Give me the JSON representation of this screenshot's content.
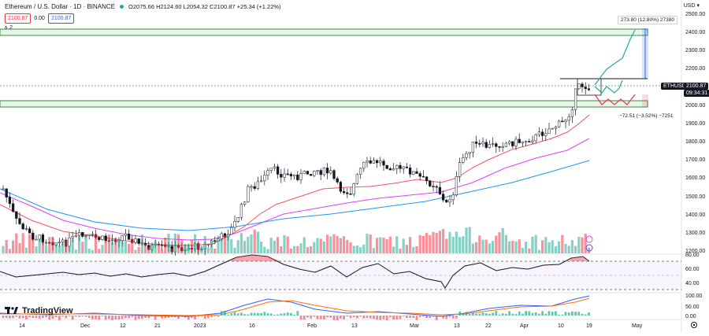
{
  "header": {
    "title": "Ethereum / U.S. Dollar · 1D · BINANCE",
    "ohlc": "O2075.66 H2124.60 L2054.32 C2100.87 +25.34 (+1.22%)",
    "bid": "2100.87",
    "spread": "0.00",
    "ask": "2100.87",
    "collapse": "∧ 2",
    "currency": "USD ▾"
  },
  "price_axis": {
    "labels": [
      "2500.00",
      "2400.00",
      "2300.00",
      "2200.00",
      "2100.00",
      "2000.00",
      "1900.00",
      "1800.00",
      "1700.00",
      "1600.00",
      "1500.00",
      "1400.00",
      "1300.00",
      "1200.00"
    ],
    "symbol_tag": "ETHUSD",
    "price_tag": "2100.87",
    "countdown": "09:34:31"
  },
  "lower_axis": {
    "rsi_labels": [
      "80.00",
      "60.00",
      "40.00"
    ],
    "macd_labels": [
      "100.00",
      "50.00",
      "0.00"
    ]
  },
  "time_axis": [
    "14",
    "Dec",
    "12",
    "21",
    "2023",
    "16",
    "Feb",
    "13",
    "Mar",
    "13",
    "22",
    "Apr",
    "10",
    "19",
    "May"
  ],
  "annotations": {
    "target_up": "273.80 (12.80%) 27380",
    "target_down": "−72.51 (−3.52%) −7251"
  },
  "branding": {
    "logo_text": "TradingView"
  },
  "colors": {
    "up": "#22ab94",
    "down": "#f23645",
    "accent": "#2962ff"
  }
}
